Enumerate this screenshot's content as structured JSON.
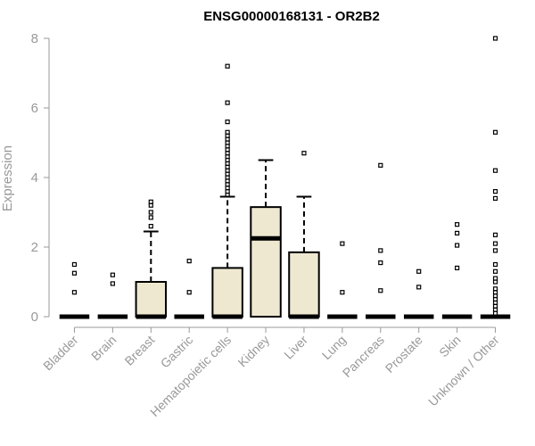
{
  "chart_data": {
    "type": "box",
    "title": "ENSG00000168131 - OR2B2",
    "ylabel": "Expression",
    "xlabel": "",
    "ylim": [
      0,
      8
    ],
    "yticks": [
      0,
      2,
      4,
      6,
      8
    ],
    "grid": false,
    "colors": {
      "box_fill": "#efe8d1",
      "stroke": "#000000",
      "axis_text": "#999999"
    },
    "categories": [
      "Bladder",
      "Brain",
      "Breast",
      "Gastric",
      "Hematopoietic cells",
      "Kidney",
      "Liver",
      "Lung",
      "Pancreas",
      "Prostate",
      "Skin",
      "Unknown / Other"
    ],
    "boxes": [
      {
        "name": "Bladder",
        "q1": 0,
        "median": 0,
        "q3": 0,
        "whisker_low": 0,
        "whisker_high": 0,
        "outliers": [
          0.7,
          1.25,
          1.5
        ]
      },
      {
        "name": "Brain",
        "q1": 0,
        "median": 0,
        "q3": 0,
        "whisker_low": 0,
        "whisker_high": 0,
        "outliers": [
          0.95,
          1.2
        ]
      },
      {
        "name": "Breast",
        "q1": 0,
        "median": 0,
        "q3": 1.0,
        "whisker_low": 0,
        "whisker_high": 2.45,
        "outliers": [
          2.6,
          2.85,
          3.0,
          3.2,
          3.3
        ]
      },
      {
        "name": "Gastric",
        "q1": 0,
        "median": 0,
        "q3": 0,
        "whisker_low": 0,
        "whisker_high": 0,
        "outliers": [
          0.7,
          1.6
        ]
      },
      {
        "name": "Hematopoietic cells",
        "q1": 0,
        "median": 0,
        "q3": 1.4,
        "whisker_low": 0,
        "whisker_high": 3.45,
        "outliers": [
          3.5,
          3.6,
          3.7,
          3.8,
          3.9,
          4.0,
          4.1,
          4.2,
          4.3,
          4.4,
          4.5,
          4.6,
          4.7,
          4.8,
          4.9,
          5.0,
          5.1,
          5.2,
          5.3,
          5.6,
          6.15,
          7.2
        ]
      },
      {
        "name": "Kidney",
        "q1": 0,
        "median": 2.25,
        "q3": 3.15,
        "whisker_low": 0,
        "whisker_high": 4.5,
        "outliers": []
      },
      {
        "name": "Liver",
        "q1": 0,
        "median": 0,
        "q3": 1.85,
        "whisker_low": 0,
        "whisker_high": 3.45,
        "outliers": [
          4.7
        ]
      },
      {
        "name": "Lung",
        "q1": 0,
        "median": 0,
        "q3": 0,
        "whisker_low": 0,
        "whisker_high": 0,
        "outliers": [
          0.7,
          2.1
        ]
      },
      {
        "name": "Pancreas",
        "q1": 0,
        "median": 0,
        "q3": 0,
        "whisker_low": 0,
        "whisker_high": 0,
        "outliers": [
          0.75,
          1.55,
          1.9,
          4.35
        ]
      },
      {
        "name": "Prostate",
        "q1": 0,
        "median": 0,
        "q3": 0,
        "whisker_low": 0,
        "whisker_high": 0,
        "outliers": [
          0.85,
          1.3
        ]
      },
      {
        "name": "Skin",
        "q1": 0,
        "median": 0,
        "q3": 0,
        "whisker_low": 0,
        "whisker_high": 0,
        "outliers": [
          1.4,
          2.05,
          2.4,
          2.65
        ]
      },
      {
        "name": "Unknown / Other",
        "q1": 0,
        "median": 0,
        "q3": 0,
        "whisker_low": 0,
        "whisker_high": 0,
        "outliers": [
          0.1,
          0.2,
          0.3,
          0.4,
          0.5,
          0.6,
          0.7,
          0.8,
          1.0,
          1.1,
          1.3,
          1.5,
          1.9,
          2.1,
          2.35,
          3.4,
          3.6,
          4.2,
          5.3,
          8.0
        ]
      }
    ]
  }
}
